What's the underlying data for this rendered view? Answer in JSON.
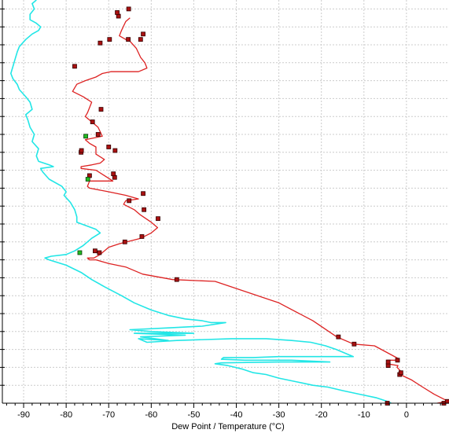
{
  "chart_data": {
    "type": "line",
    "title": "",
    "xlabel": "Dew Point / Temperature (°C)",
    "ylabel": "",
    "xlim": [
      -95,
      10
    ],
    "ylim": [
      0,
      22.5
    ],
    "x_ticks": [
      -90,
      -80,
      -70,
      -60,
      -50,
      -40,
      -30,
      -20,
      -10,
      0
    ],
    "x_tick_labels": [
      "-90",
      "-80",
      "-70",
      "-60",
      "-50",
      "-40",
      "-30",
      "-20",
      "-10",
      "0"
    ],
    "y_ticks": [
      1,
      2,
      3,
      4,
      5,
      6,
      7,
      8,
      9,
      10,
      11,
      12,
      13,
      14,
      15,
      16,
      17,
      18,
      19,
      20,
      21,
      22
    ],
    "grid": true,
    "legend": "none",
    "colors": {
      "temperature_line": "#dd2222",
      "dew_point_line": "#22e6e6",
      "marker_fill": "#aa1111",
      "marker_stroke": "#330000",
      "marker_highlight": "#22bb22",
      "grid": "#cccccc",
      "axis": "#000000",
      "background": "#ffffff"
    },
    "series": [
      {
        "key": "temperature",
        "color": "#dd2222",
        "markers": true,
        "points": [
          [
            7.2,
            0.0
          ],
          [
            9.6,
            0.1
          ],
          [
            9.0,
            0.2
          ],
          [
            6.5,
            0.5
          ],
          [
            3.8,
            0.9
          ],
          [
            1.2,
            1.3
          ],
          [
            -1.5,
            1.6
          ],
          [
            -1.0,
            1.7
          ],
          [
            -2.2,
            2.0
          ],
          [
            -2.0,
            2.1
          ],
          [
            -4.6,
            2.2
          ],
          [
            -4.6,
            2.4
          ],
          [
            -2.0,
            2.4
          ],
          [
            -2.0,
            2.5
          ],
          [
            -7.5,
            3.2
          ],
          [
            -12.4,
            3.3
          ],
          [
            -16.4,
            3.7
          ],
          [
            -22.0,
            4.6
          ],
          [
            -30.0,
            5.6
          ],
          [
            -45.0,
            6.8
          ],
          [
            -55.0,
            6.9
          ],
          [
            -62.0,
            7.2
          ],
          [
            -66.0,
            7.6
          ],
          [
            -70.0,
            7.8
          ],
          [
            -73.0,
            8.0
          ],
          [
            -74.5,
            8.0
          ],
          [
            -75.0,
            8.1
          ],
          [
            -73.5,
            8.1
          ],
          [
            -72.0,
            8.3
          ],
          [
            -70.0,
            8.7
          ],
          [
            -67.5,
            8.9
          ],
          [
            -62.5,
            9.2
          ],
          [
            -60.0,
            9.5
          ],
          [
            -58.5,
            9.8
          ],
          [
            -60.0,
            10.1
          ],
          [
            -62.5,
            10.5
          ],
          [
            -64.0,
            10.8
          ],
          [
            -66.5,
            11.1
          ],
          [
            -66.0,
            11.3
          ],
          [
            -63.0,
            11.4
          ],
          [
            -66.0,
            11.6
          ],
          [
            -70.0,
            11.8
          ],
          [
            -74.5,
            12.0
          ],
          [
            -75.0,
            12.1
          ],
          [
            -74.5,
            12.4
          ],
          [
            -72.0,
            12.4
          ],
          [
            -69.0,
            12.4
          ],
          [
            -71.0,
            12.7
          ],
          [
            -73.0,
            13.0
          ],
          [
            -76.5,
            13.1
          ],
          [
            -76.5,
            13.2
          ],
          [
            -74.0,
            13.3
          ],
          [
            -72.0,
            13.4
          ],
          [
            -71.0,
            13.6
          ],
          [
            -73.0,
            13.9
          ],
          [
            -73.0,
            14.3
          ],
          [
            -74.5,
            14.5
          ],
          [
            -75.5,
            14.7
          ],
          [
            -71.5,
            14.9
          ],
          [
            -72.5,
            15.4
          ],
          [
            -74.0,
            15.7
          ],
          [
            -75.5,
            16.0
          ],
          [
            -75.0,
            16.2
          ],
          [
            -74.0,
            16.8
          ],
          [
            -76.0,
            17.1
          ],
          [
            -78.5,
            17.4
          ],
          [
            -77.5,
            17.8
          ],
          [
            -75.5,
            18.0
          ],
          [
            -73.0,
            18.2
          ],
          [
            -71.5,
            18.4
          ],
          [
            -69.5,
            18.5
          ],
          [
            -67.0,
            18.5
          ],
          [
            -63.0,
            18.5
          ],
          [
            -61.0,
            18.7
          ],
          [
            -61.5,
            19.0
          ],
          [
            -62.5,
            19.3
          ],
          [
            -63.5,
            19.8
          ],
          [
            -65.0,
            20.2
          ],
          [
            -66.0,
            20.3
          ],
          [
            -67.5,
            20.5
          ],
          [
            -67.0,
            20.8
          ],
          [
            -66.0,
            21.3
          ],
          [
            -65.0,
            21.5
          ]
        ],
        "marked_points": [
          [
            -4.5,
            0.0
          ],
          [
            8.8,
            0.0
          ],
          [
            9.6,
            0.1
          ],
          [
            -1.6,
            1.6
          ],
          [
            -1.3,
            1.7
          ],
          [
            -4.3,
            2.1
          ],
          [
            -4.3,
            2.3
          ],
          [
            -2.1,
            2.4
          ],
          [
            -12.3,
            3.3
          ],
          [
            -16.0,
            3.7
          ],
          [
            -54.0,
            6.9
          ],
          [
            -66.2,
            9.0
          ],
          [
            -72.2,
            8.4
          ],
          [
            -73.2,
            8.5
          ],
          [
            -62.2,
            9.3
          ],
          [
            -58.4,
            10.3
          ],
          [
            -61.7,
            10.8
          ],
          [
            -65.2,
            11.3
          ],
          [
            -61.9,
            11.7
          ],
          [
            -68.6,
            12.6
          ],
          [
            -68.9,
            12.8
          ],
          [
            -74.5,
            12.7
          ],
          [
            -68.5,
            14.1
          ],
          [
            -70.0,
            14.3
          ],
          [
            -76.5,
            14.0
          ],
          [
            -76.4,
            14.1
          ],
          [
            -72.5,
            15.0
          ],
          [
            -73.8,
            15.7
          ],
          [
            -71.8,
            16.4
          ],
          [
            -78.0,
            18.8
          ],
          [
            -72.0,
            20.1
          ],
          [
            -69.8,
            20.3
          ],
          [
            -65.4,
            20.3
          ],
          [
            -62.5,
            20.3
          ],
          [
            -61.9,
            20.6
          ],
          [
            -67.7,
            21.6
          ],
          [
            -68.0,
            21.8
          ],
          [
            -65.3,
            22.0
          ]
        ],
        "highlighted_points": [
          [
            -76.8,
            8.4
          ],
          [
            -74.9,
            12.5
          ],
          [
            -75.4,
            14.9
          ]
        ]
      },
      {
        "key": "dew_point",
        "color": "#22e6e6",
        "markers": false,
        "points": [
          [
            -3.6,
            0.0
          ],
          [
            -4.5,
            0.1
          ],
          [
            -7.0,
            0.3
          ],
          [
            -11.0,
            0.5
          ],
          [
            -15.0,
            0.7
          ],
          [
            -18.5,
            0.9
          ],
          [
            -22.0,
            1.0
          ],
          [
            -26.0,
            1.2
          ],
          [
            -30.0,
            1.4
          ],
          [
            -33.0,
            1.6
          ],
          [
            -36.0,
            1.7
          ],
          [
            -38.5,
            1.9
          ],
          [
            -42.0,
            2.1
          ],
          [
            -45.0,
            2.2
          ],
          [
            -43.5,
            2.25
          ],
          [
            -30.0,
            2.3
          ],
          [
            -18.0,
            2.3
          ],
          [
            -27.0,
            2.4
          ],
          [
            -38.0,
            2.4
          ],
          [
            -43.5,
            2.45
          ],
          [
            -43.0,
            2.55
          ],
          [
            -36.0,
            2.55
          ],
          [
            -30.0,
            2.6
          ],
          [
            -20.0,
            2.6
          ],
          [
            -12.5,
            2.6
          ],
          [
            -16.5,
            3.0
          ],
          [
            -19.0,
            3.2
          ],
          [
            -22.5,
            3.4
          ],
          [
            -27.0,
            3.5
          ],
          [
            -33.0,
            3.6
          ],
          [
            -41.0,
            3.6
          ],
          [
            -54.0,
            3.5
          ],
          [
            -61.0,
            3.4
          ],
          [
            -63.0,
            3.6
          ],
          [
            -56.0,
            3.5
          ],
          [
            -62.5,
            3.7
          ],
          [
            -52.0,
            3.8
          ],
          [
            -64.0,
            3.9
          ],
          [
            -50.0,
            3.9
          ],
          [
            -60.0,
            4.0
          ],
          [
            -65.0,
            4.1
          ],
          [
            -56.0,
            4.2
          ],
          [
            -48.0,
            4.3
          ],
          [
            -42.5,
            4.5
          ],
          [
            -46.0,
            4.5
          ],
          [
            -48.0,
            4.6
          ],
          [
            -52.0,
            4.7
          ],
          [
            -56.0,
            4.9
          ],
          [
            -60.0,
            5.2
          ],
          [
            -64.0,
            5.6
          ],
          [
            -67.0,
            6.0
          ],
          [
            -71.0,
            6.5
          ],
          [
            -74.0,
            6.9
          ],
          [
            -76.5,
            7.3
          ],
          [
            -80.0,
            7.7
          ],
          [
            -84.0,
            8.0
          ],
          [
            -85.0,
            8.1
          ],
          [
            -83.5,
            8.2
          ],
          [
            -80.0,
            8.3
          ],
          [
            -78.0,
            8.5
          ],
          [
            -76.0,
            8.8
          ],
          [
            -75.0,
            9.0
          ],
          [
            -74.0,
            9.2
          ],
          [
            -72.0,
            9.5
          ],
          [
            -73.0,
            9.7
          ],
          [
            -77.5,
            10.1
          ],
          [
            -77.5,
            10.4
          ],
          [
            -78.0,
            10.8
          ],
          [
            -79.0,
            11.2
          ],
          [
            -80.5,
            11.6
          ],
          [
            -80.0,
            11.8
          ],
          [
            -81.0,
            12.1
          ],
          [
            -84.0,
            12.5
          ],
          [
            -85.5,
            12.9
          ],
          [
            -86.0,
            13.1
          ],
          [
            -83.0,
            13.2
          ],
          [
            -84.0,
            13.3
          ],
          [
            -86.5,
            13.5
          ],
          [
            -87.0,
            13.8
          ],
          [
            -86.5,
            14.2
          ],
          [
            -88.0,
            14.6
          ],
          [
            -87.5,
            15.0
          ],
          [
            -88.5,
            15.4
          ],
          [
            -89.0,
            15.8
          ],
          [
            -89.5,
            16.1
          ],
          [
            -88.0,
            16.4
          ],
          [
            -88.5,
            16.8
          ],
          [
            -89.5,
            17.1
          ],
          [
            -91.0,
            17.5
          ],
          [
            -91.5,
            17.8
          ],
          [
            -92.5,
            18.1
          ],
          [
            -93.0,
            18.4
          ],
          [
            -92.5,
            18.8
          ],
          [
            -92.0,
            19.2
          ],
          [
            -91.5,
            19.6
          ],
          [
            -91.0,
            19.9
          ],
          [
            -89.5,
            20.3
          ],
          [
            -88.0,
            20.6
          ],
          [
            -86.5,
            20.8
          ],
          [
            -86.0,
            21.0
          ],
          [
            -87.0,
            21.2
          ],
          [
            -88.5,
            21.4
          ],
          [
            -88.5,
            21.7
          ],
          [
            -87.5,
            22.0
          ],
          [
            -88.0,
            22.3
          ],
          [
            -87.0,
            22.5
          ]
        ]
      }
    ]
  }
}
